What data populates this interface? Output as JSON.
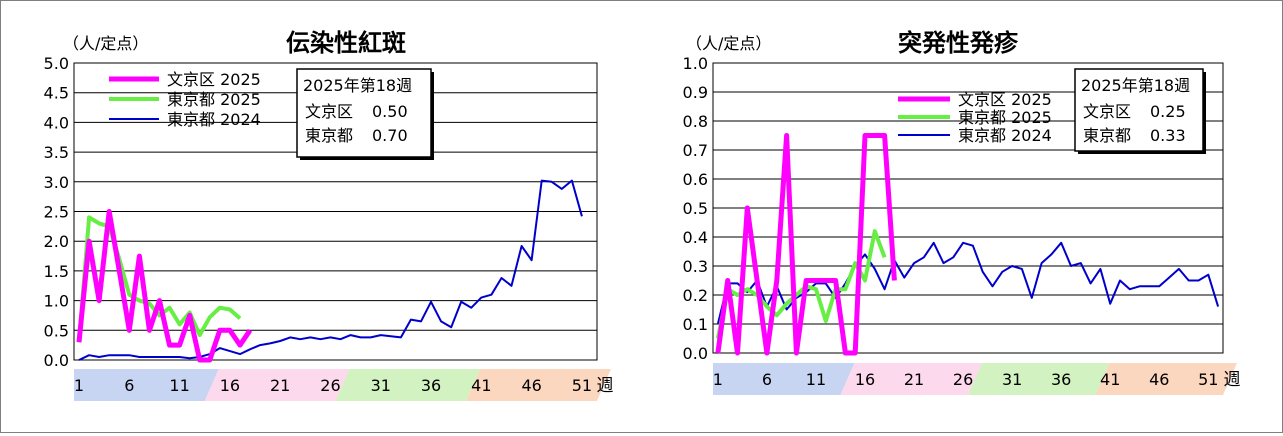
{
  "chart_data": [
    {
      "type": "line",
      "title": "伝染性紅斑",
      "ylabel": "（人/定点）",
      "xlabel": "週",
      "ylim": [
        0,
        5.0
      ],
      "y_ticks": [
        "0.0",
        "0.5",
        "1.0",
        "1.5",
        "2.0",
        "2.5",
        "3.0",
        "3.5",
        "4.0",
        "4.5",
        "5.0"
      ],
      "x_ticks": [
        "1",
        "6",
        "11",
        "16",
        "21",
        "26",
        "31",
        "36",
        "41",
        "46",
        "51"
      ],
      "grid": true,
      "legend_position": "top-left",
      "series": [
        {
          "name": "文京区 2025",
          "color": "#ff00ff",
          "values": [
            0.3,
            2.0,
            1.0,
            2.5,
            1.5,
            0.5,
            1.75,
            0.5,
            1.0,
            0.25,
            0.25,
            0.75,
            0,
            0,
            0.5,
            0.5,
            0.25,
            0.5
          ]
        },
        {
          "name": "東京都 2025",
          "color": "#66ee44",
          "values": [
            0.3,
            2.4,
            2.3,
            2.25,
            1.7,
            1.1,
            1.0,
            0.95,
            0.75,
            0.88,
            0.6,
            0.8,
            0.42,
            0.72,
            0.88,
            0.85,
            0.7
          ]
        },
        {
          "name": "東京都 2024",
          "color": "#0000cc",
          "values": [
            0.0,
            0.08,
            0.05,
            0.08,
            0.08,
            0.08,
            0.05,
            0.05,
            0.05,
            0.05,
            0.05,
            0.03,
            0.05,
            0.1,
            0.2,
            0.15,
            0.1,
            0.18,
            0.25,
            0.28,
            0.32,
            0.38,
            0.35,
            0.38,
            0.35,
            0.38,
            0.35,
            0.42,
            0.38,
            0.38,
            0.42,
            0.4,
            0.38,
            0.68,
            0.65,
            0.98,
            0.65,
            0.55,
            0.98,
            0.88,
            1.05,
            1.1,
            1.38,
            1.25,
            1.92,
            1.68,
            3.02,
            3.0,
            2.88,
            3.02,
            2.42
          ]
        }
      ],
      "infobox": {
        "heading": "2025年第18週",
        "rows": [
          {
            "label": "文京区",
            "value": "0.50"
          },
          {
            "label": "東京都",
            "value": "0.70"
          }
        ]
      }
    },
    {
      "type": "line",
      "title": "突発性発疹",
      "ylabel": "（人/定点）",
      "xlabel": "週",
      "ylim": [
        0,
        1.0
      ],
      "y_ticks": [
        "0.0",
        "0.1",
        "0.2",
        "0.3",
        "0.4",
        "0.5",
        "0.6",
        "0.7",
        "0.8",
        "0.9",
        "1.0"
      ],
      "x_ticks": [
        "1",
        "6",
        "11",
        "16",
        "21",
        "26",
        "31",
        "36",
        "41",
        "46",
        "51"
      ],
      "grid": true,
      "legend_position": "top-center",
      "series": [
        {
          "name": "文京区 2025",
          "color": "#ff00ff",
          "values": [
            0,
            0.25,
            0,
            0.5,
            0.25,
            0,
            0.25,
            0.75,
            0,
            0.25,
            0.25,
            0.25,
            0.25,
            0,
            0,
            0.75,
            0.75,
            0.75,
            0.25
          ]
        },
        {
          "name": "東京都 2025",
          "color": "#66ee44",
          "values": [
            0.05,
            0.22,
            0.2,
            0.22,
            0.2,
            0.16,
            0.13,
            0.17,
            0.2,
            0.23,
            0.22,
            0.11,
            0.22,
            0.22,
            0.31,
            0.25,
            0.42,
            0.33
          ]
        },
        {
          "name": "東京都 2024",
          "color": "#0000cc",
          "values": [
            0.1,
            0.24,
            0.24,
            0.21,
            0.25,
            0.16,
            0.23,
            0.15,
            0.19,
            0.21,
            0.24,
            0.24,
            0.19,
            0.24,
            0.3,
            0.34,
            0.29,
            0.22,
            0.32,
            0.26,
            0.31,
            0.33,
            0.38,
            0.31,
            0.33,
            0.38,
            0.37,
            0.28,
            0.23,
            0.28,
            0.3,
            0.29,
            0.19,
            0.31,
            0.34,
            0.38,
            0.3,
            0.31,
            0.24,
            0.29,
            0.17,
            0.25,
            0.22,
            0.23,
            0.23,
            0.23,
            0.26,
            0.29,
            0.25,
            0.25,
            0.27,
            0.16
          ]
        }
      ],
      "infobox": {
        "heading": "2025年第18週",
        "rows": [
          {
            "label": "文京区",
            "value": "0.25"
          },
          {
            "label": "東京都",
            "value": "0.33"
          }
        ]
      }
    }
  ]
}
